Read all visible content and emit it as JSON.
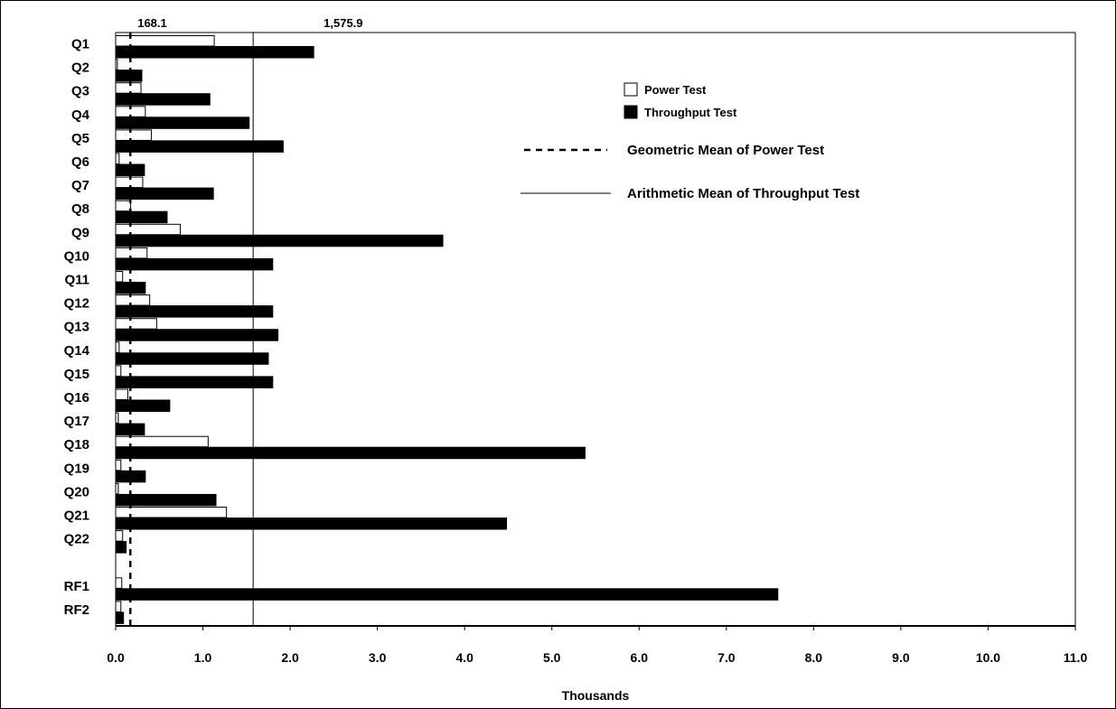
{
  "chart_data": {
    "type": "bar",
    "orientation": "horizontal",
    "categories": [
      "Q1",
      "Q2",
      "Q3",
      "Q4",
      "Q5",
      "Q6",
      "Q7",
      "Q8",
      "Q9",
      "Q10",
      "Q11",
      "Q12",
      "Q13",
      "Q14",
      "Q15",
      "Q16",
      "Q17",
      "Q18",
      "Q19",
      "Q20",
      "Q21",
      "Q22",
      "RF1",
      "RF2"
    ],
    "series": [
      {
        "name": "Power Test",
        "color": "#ffffff",
        "values": [
          1130,
          20,
          290,
          340,
          410,
          40,
          310,
          170,
          740,
          360,
          80,
          390,
          470,
          40,
          60,
          140,
          30,
          1060,
          60,
          30,
          1270,
          80,
          70,
          60
        ]
      },
      {
        "name": "Throughput Test",
        "color": "#000000",
        "values": [
          2270,
          300,
          1080,
          1530,
          1920,
          330,
          1120,
          590,
          3750,
          1800,
          340,
          1800,
          1860,
          1750,
          1800,
          620,
          330,
          5380,
          340,
          1150,
          4480,
          120,
          7590,
          90
        ]
      }
    ],
    "reference_lines": [
      {
        "name": "Geometric Mean of Power Test",
        "value": 168.1,
        "label": "168.1",
        "style": "dashed"
      },
      {
        "name": "Arithmetic Mean of Throughput Test",
        "value": 1575.9,
        "label": "1,575.9",
        "style": "solid"
      }
    ],
    "x_ticks": [
      "0.0",
      "1.0",
      "2.0",
      "3.0",
      "4.0",
      "5.0",
      "6.0",
      "7.0",
      "8.0",
      "9.0",
      "10.0",
      "11.0"
    ],
    "xlabel": "Thousands",
    "xlim": [
      0,
      11000
    ],
    "grid": false,
    "legend_position": "top-right"
  }
}
